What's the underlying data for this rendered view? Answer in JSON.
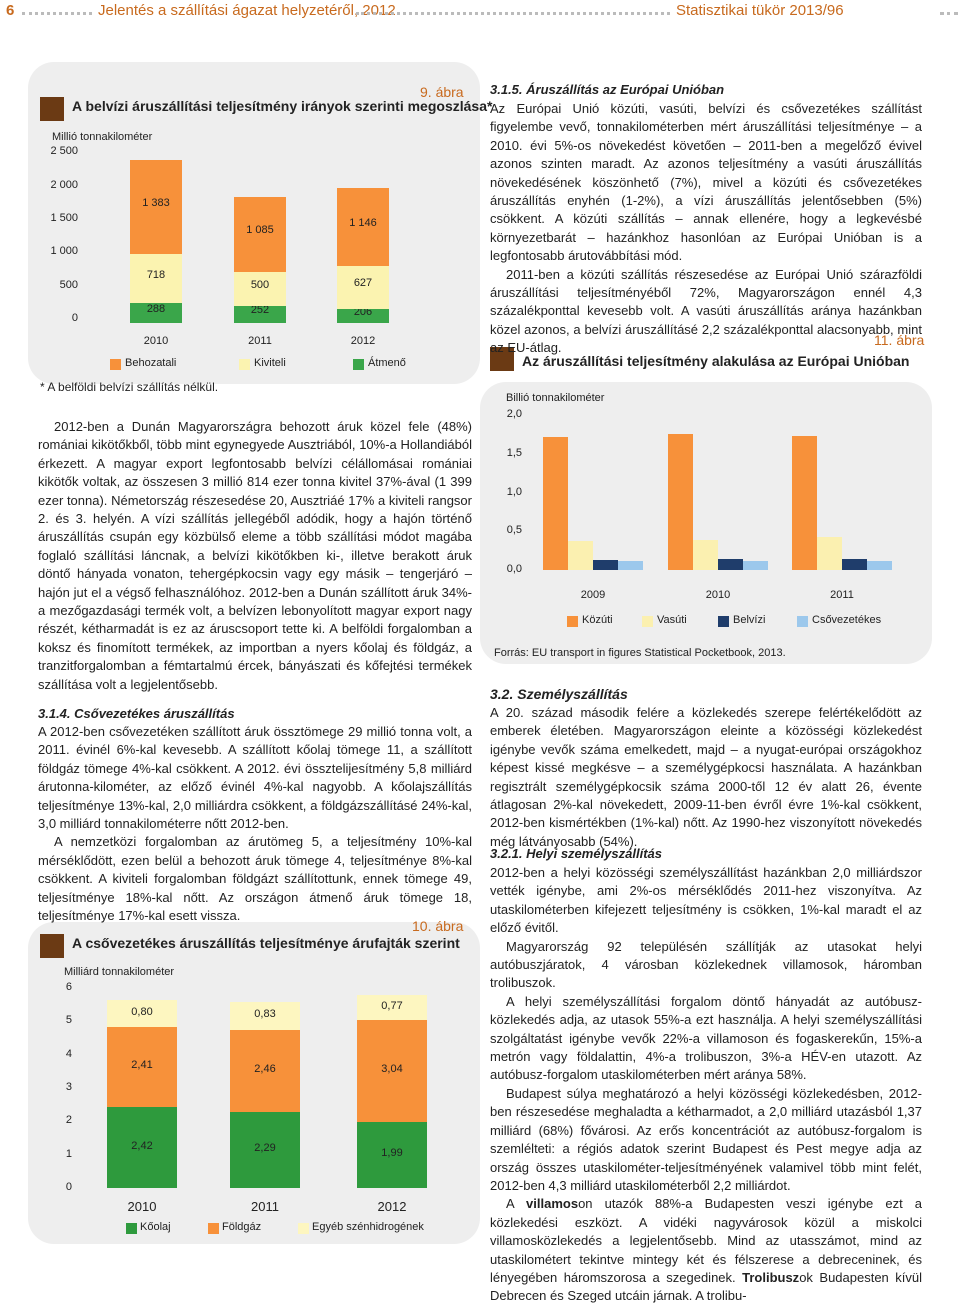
{
  "header": {
    "page_number": "6",
    "left_title": "Jelentés a szállítási ágazat helyzetéről, 2012",
    "right_title": "Statisztikai tükör 2013/96"
  },
  "colors": {
    "header": "#c86a1e",
    "panel_bg": "#eeeeee",
    "title_square": "#6b3a14",
    "behozatali": "#f7913a",
    "kiviteli": "#fbf3b0",
    "atmeno": "#3aa64a",
    "kozuti": "#f7913a",
    "vasuti": "#fbf0b0",
    "belvizi": "#1f3d6b",
    "csovezetekes": "#9cc8ec",
    "koolaj": "#2e9a3d",
    "foldgaz": "#f7913a",
    "egyeb": "#fdf6c0"
  },
  "figure9": {
    "number": "9. ábra",
    "title": "A belvízi áruszállítási teljesítmény irányok szerinti megoszlása*",
    "unit": "Millió tonnakilométer",
    "y_ticks": [
      "2 500",
      "2 000",
      "1 500",
      "1 000",
      "500",
      "0"
    ],
    "footnote": "* A belföldi belvízi szállítás nélkül."
  },
  "figure10": {
    "number": "10. ábra",
    "title": "A csővezetékes áruszállítás teljesítménye árufajták szerint",
    "unit": "Milliárd tonnakilométer",
    "y_ticks": [
      "6",
      "5",
      "4",
      "3",
      "2",
      "1",
      "0"
    ]
  },
  "figure11": {
    "number": "11. ábra",
    "title": "Az áruszállítási teljesítmény alakulása az Európai Unióban",
    "unit": "Billió tonnakilométer",
    "y_ticks": [
      "2,0",
      "1,5",
      "1,0",
      "0,5",
      "0,0"
    ],
    "source": "Forrás: EU transport in figures Statistical Pocketbook, 2013."
  },
  "chart_data": [
    {
      "type": "bar",
      "stacked": true,
      "categories": [
        "2010",
        "2011",
        "2012"
      ],
      "series": [
        {
          "name": "Átmenő",
          "values": [
            288,
            252,
            206
          ],
          "labels": [
            "288",
            "252",
            "206"
          ]
        },
        {
          "name": "Kiviteli",
          "values": [
            718,
            500,
            627
          ],
          "labels": [
            "718",
            "500",
            "627"
          ]
        },
        {
          "name": "Behozatali",
          "values": [
            1383,
            1085,
            1146
          ],
          "labels": [
            "1 383",
            "1 085",
            "1 146"
          ]
        }
      ],
      "ylim": [
        0,
        2500
      ]
    },
    {
      "type": "bar",
      "stacked": true,
      "categories": [
        "2010",
        "2011",
        "2012"
      ],
      "series": [
        {
          "name": "Kőolaj",
          "values": [
            2.42,
            2.29,
            1.99
          ],
          "labels": [
            "2,42",
            "2,29",
            "1,99"
          ]
        },
        {
          "name": "Földgáz",
          "values": [
            2.41,
            2.46,
            3.04
          ],
          "labels": [
            "2,41",
            "2,46",
            "3,04"
          ]
        },
        {
          "name": "Egyéb szénhidrogének",
          "values": [
            0.8,
            0.83,
            0.77
          ],
          "labels": [
            "0,80",
            "0,83",
            "0,77"
          ]
        }
      ],
      "ylim": [
        0,
        6
      ]
    },
    {
      "type": "bar",
      "categories": [
        "2009",
        "2010",
        "2011"
      ],
      "series": [
        {
          "name": "Közúti",
          "values": [
            1.72,
            1.76,
            1.73
          ]
        },
        {
          "name": "Vasúti",
          "values": [
            0.37,
            0.39,
            0.43
          ]
        },
        {
          "name": "Belvízi",
          "values": [
            0.13,
            0.145,
            0.14
          ]
        },
        {
          "name": "Csővezetékes",
          "values": [
            0.12,
            0.12,
            0.12
          ]
        }
      ],
      "ylim": [
        0,
        2.0
      ]
    }
  ],
  "left_text": {
    "p1": "2012-ben a Dunán Magyarországra behozott áruk közel fele (48%) romániai kikötőkből, több mint egynegyede Ausztriából, 10%-a Hollandiából érkezett. A magyar export legfontosabb belvízi célállomásai romániai kikötők voltak, az összesen 3 millió 814 ezer tonna kivitel 37%-ával (1 399 ezer tonna). Németország részesedése 20, Ausztriáé 17% a kiviteli rangsor 2. és 3. helyén. A vízi szállítás jellegéből adódik, hogy a hajón történő áruszállítás csupán egy közbülső eleme a több szállítási módot magába foglaló szállítási láncnak, a belvízi kikötőkben ki-, illetve berakott áruk döntő hányada vonaton, tehergépkocsin vagy egy másik – tengerjáró – hajón jut el a végső felhasználóhoz. 2012-ben a Dunán szállított áruk 34%-a mezőgazdasági termék volt, a belvízen lebonyolított magyar export nagy részét, kétharmadát is ez az áruscsoport tette ki. A belföldi forgalomban a koksz és finomított termékek, az importban a nyers kőolaj és földgáz, a tranzitforgalomban a fémtartalmú ércek, bányászati és kőfejtési termékek szállítása volt a legjelentősebb.",
    "sec_314": "3.1.4. Csővezetékes áruszállítás",
    "p2": "A 2012-ben csővezetéken szállított áruk össztömege 29 millió tonna volt, a 2011. évinél 6%-kal kevesebb. A szállított kőolaj tömege 11, a szállított földgáz tömege 4%-kal csökkent. A 2012. évi össztelijesítmény 5,8 milliárd árutonna-kilométer, az előző évinél 4%-kal nagyobb. A kőolajszállítás teljesítménye 13%-kal, 2,0 milliárdra csökkent, a földgázszállításé 24%-kal, 3,0 milliárd tonnakilométerre nőtt 2012-ben.",
    "p3": "A nemzetközi forgalomban az árutömeg 5, a teljesítmény 10%-kal mérséklődött, ezen belül a behozott áruk tömege 4, teljesítménye 8%-kal csökkent. A kiviteli forgalomban földgázt szállítottunk, ennek tömege 49, teljesítménye 18%-kal nőtt. Az országon átmenő áruk tömege 18, teljesítménye 17%-kal esett vissza."
  },
  "right_text": {
    "sec_315": "3.1.5. Áruszállítás az Európai Unióban",
    "p1": "Az Európai Unió közúti, vasúti, belvízi és csővezetékes szállítást figyelembe vevő, tonnakilométerben mért áruszállítási teljesítménye – a 2010. évi 5%-os növekedést követően – 2011-ben a megelőző évivel azonos szinten maradt. Az azonos teljesítmény a vasúti áruszállítás növekedésének köszönhető (7%), mivel a közúti és csővezetékes áruszállítás enyhén (1-2%), a vízi áruszállítás jelentősebben (5%) csökkent. A közúti szállítás – annak ellenére, hogy a legkevésbé környezetbarát – hazánkhoz hasonlóan az Európai Unióban is a legfontosabb árutovábbítási mód.",
    "p2": "2011-ben a közúti szállítás részesedése az Európai Unió szárazföldi áruszállítási teljesítményéből 72%, Magyarországon ennél 4,3 százalékponttal kevesebb volt. A vasúti áruszállítás aránya hazánkban közel azonos, a belvízi áruszállításé 2,2 százalékponttal alacsonyabb, mint az EU-átlag.",
    "sec_32": "3.2. Személyszállítás",
    "p3": "A 20. század második felére a közlekedés szerepe felértékelődött az emberek életében. Magyarországon eleinte a közösségi közlekedést igénybe vevők száma emelkedett, majd – a nyugat-európai országokhoz képest kissé megkésve – a személygépkocsi használata. A hazánkban regisztrált személygépkocsik száma 2000-től 12 év alatt 26, évente átlagosan 2%-kal növekedett, 2009-11-ben évről évre 1%-kal csökkent, 2012-ben kismértékben (1%-kal) nőtt. Az 1990-hez viszonyított növekedés még látványosabb (54%).",
    "sec_321": "3.2.1. Helyi személyszállítás",
    "p4": "2012-ben a helyi közösségi személyszállítást hazánkban 2,0 milliárdszor vették igénybe, ami 2%-os mérséklődés 2011-hez viszonyítva. Az utaskilométerben kifejezett teljesítmény is csökken, 1%-kal maradt el az előző évitől.",
    "p5": "Magyarország 92 településén szállítják az utasokat helyi autóbuszjáratok, 4 városban közlekednek villamosok, háromban trolibuszok.",
    "p6": "A helyi személyszállítási forgalom döntő hányadát az autóbusz-közlekedés adja, az utasok 55%-a ezt használja. A helyi személyszállítási szolgáltatást igénybe vevők 22%-a villamoson és fogaskerekűn, 15%-a metrón vagy földalattin, 4%-a trolibuszon, 3%-a HÉV-en utazott. Az autóbusz-forgalom utaskilométerben mért aránya 58%.",
    "p7": "Budapest súlya meghatározó a helyi közösségi közlekedésben, 2012-ben részesedése meghaladta a kétharmadot, a 2,0 milliárd utazásból 1,37 milliárd (68%) fővárosi. Az erős koncentrációt az autóbusz-forgalom is szemlélteti: a régiós adatok szerint Budapest és Pest megye adja az ország összes utaskilométer-teljesítményének valamivel több mint felét, 2012-ben 4,3 milliárd utaskilométerből 2,2 milliárdot.",
    "p8_a": "A ",
    "p8_bold1": "villamos",
    "p8_b": "on utazók 88%-a Budapesten veszi igénybe ezt a közlekedési eszközt. A vidéki nagyvárosok közül a miskolci villamosközlekedés a legjelentősebb. Mind az utasszámot, mind az utaskilométert tekintve mintegy két és félszerese a debreceninek, és lényegében háromszorosa a szegedinek. ",
    "p8_bold2": "Trolibusz",
    "p8_c": "ok Budapesten kívül Debrecen és Szeged utcáin járnak. A trolibu-"
  }
}
